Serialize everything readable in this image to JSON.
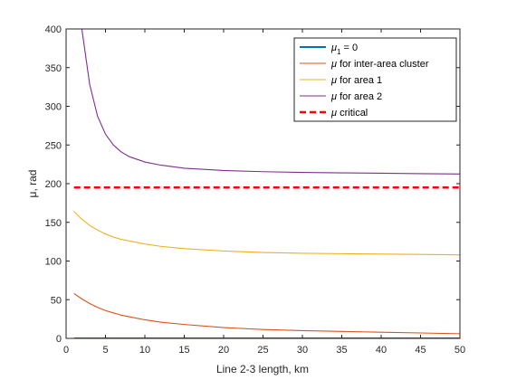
{
  "chart_data": {
    "type": "line",
    "title": "",
    "xlabel": "Line 2-3 length, km",
    "ylabel": "μ, rad",
    "xlim": [
      0,
      50
    ],
    "ylim": [
      0,
      400
    ],
    "xticks": [
      0,
      5,
      10,
      15,
      20,
      25,
      30,
      35,
      40,
      45,
      50
    ],
    "yticks": [
      0,
      50,
      100,
      150,
      200,
      250,
      300,
      350,
      400
    ],
    "grid": false,
    "legend_position": "top-right",
    "series": [
      {
        "name": "μ1 = 0",
        "legend_main": "μ",
        "legend_sub": "1",
        "legend_rest": " = 0",
        "color": "#0072BD",
        "style": "solid",
        "x": [
          1,
          50
        ],
        "y": [
          0,
          0
        ]
      },
      {
        "name": "μ for inter-area cluster",
        "legend_main": "μ",
        "legend_sub": "",
        "legend_rest": " for inter-area cluster",
        "color": "#D95319",
        "style": "solid",
        "x": [
          1,
          2,
          3,
          4,
          5,
          6,
          7,
          8,
          10,
          12,
          15,
          20,
          25,
          30,
          35,
          40,
          45,
          50
        ],
        "y": [
          58,
          51,
          45,
          40,
          36,
          33,
          30,
          28,
          24,
          21,
          18,
          14,
          11.5,
          10,
          9,
          8,
          7,
          6
        ]
      },
      {
        "name": "μ for area 1",
        "legend_main": "μ",
        "legend_sub": "",
        "legend_rest": " for area 1",
        "color": "#EDB120",
        "style": "solid",
        "x": [
          1,
          2,
          3,
          4,
          5,
          6,
          7,
          8,
          10,
          12,
          15,
          20,
          25,
          30,
          35,
          40,
          45,
          50
        ],
        "y": [
          164,
          154,
          146,
          140,
          135,
          131,
          128,
          126,
          122,
          119,
          116,
          113,
          111,
          110,
          109.5,
          109,
          108.5,
          108
        ]
      },
      {
        "name": "μ for area 2",
        "legend_main": "μ",
        "legend_sub": "",
        "legend_rest": " for area 2",
        "color": "#7E2F8E",
        "style": "solid",
        "x": [
          2,
          3,
          4,
          5,
          6,
          7,
          8,
          10,
          12,
          15,
          20,
          25,
          30,
          35,
          40,
          45,
          50
        ],
        "y": [
          400,
          328,
          287,
          264,
          250,
          241,
          235,
          228,
          224,
          220,
          217,
          215.5,
          214.5,
          214,
          213.5,
          213,
          212.5
        ]
      },
      {
        "name": "μ critical",
        "legend_main": "μ",
        "legend_sub": "",
        "legend_rest": " critical",
        "color": "#FF0000",
        "style": "dashed",
        "x": [
          1,
          50
        ],
        "y": [
          195,
          195
        ]
      }
    ]
  }
}
